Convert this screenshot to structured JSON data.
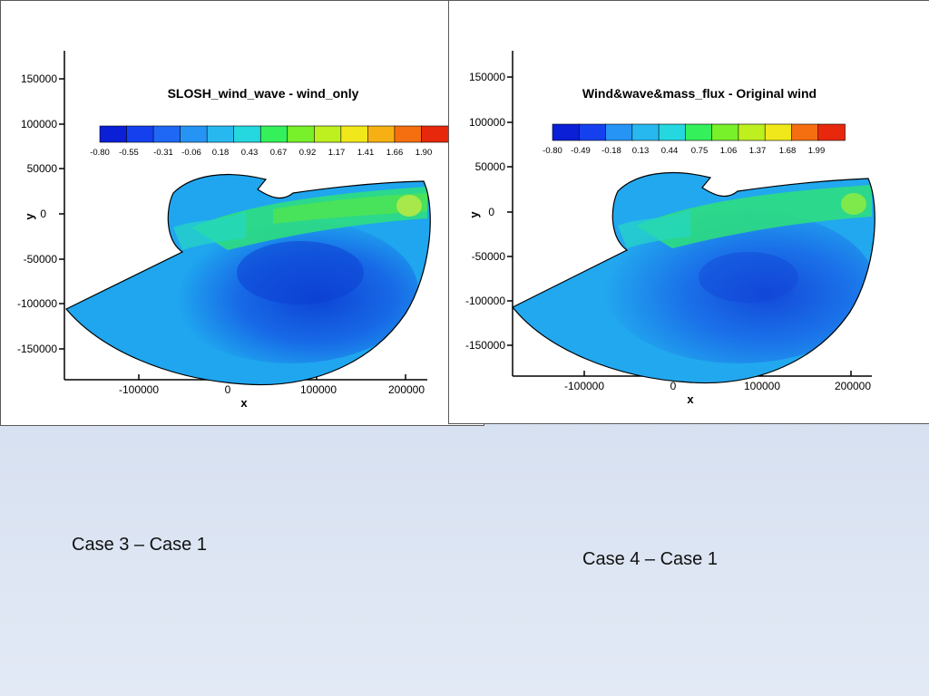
{
  "plots": [
    {
      "title": "SLOSH_wind_wave - wind_only",
      "colorbar_labels": [
        "-0.80",
        "-0.55",
        "-0.31",
        "-0.06",
        "0.18",
        "0.43",
        "0.67",
        "0.92",
        "1.17",
        "1.41",
        "1.66",
        "1.90"
      ],
      "y_ticks": [
        "150000",
        "100000",
        "50000",
        "0",
        "-50000",
        "-100000",
        "-150000"
      ],
      "x_ticks": [
        "-100000",
        "0",
        "100000",
        "200000"
      ],
      "xlabel": "x",
      "ylabel": "y"
    },
    {
      "title": "Wind&wave&mass_flux - Original wind",
      "colorbar_labels": [
        "-0.80",
        "-0.49",
        "-0.18",
        "0.13",
        "0.44",
        "0.75",
        "1.06",
        "1.37",
        "1.68",
        "1.99"
      ],
      "y_ticks": [
        "150000",
        "100000",
        "50000",
        "0",
        "-50000",
        "-100000",
        "-150000"
      ],
      "x_ticks": [
        "-100000",
        "0",
        "100000",
        "200000"
      ],
      "xlabel": "x",
      "ylabel": "y"
    }
  ],
  "captions": {
    "left": "Case 3 – Case 1",
    "right": "Case 4 – Case 1"
  },
  "colormap": [
    "#0a1fd6",
    "#1540ee",
    "#1f68f5",
    "#2594f5",
    "#28b8f0",
    "#25d7df",
    "#22ec9c",
    "#34f05a",
    "#78f02a",
    "#bdf01e",
    "#f0e81a",
    "#f7b014",
    "#f56f10",
    "#e8280c"
  ],
  "colors": {
    "domain_base": "#1fa6ef",
    "deep_low": "#0c3fd3",
    "coastal_high": "#2ee07a",
    "page_background": "#cdd9ee"
  }
}
